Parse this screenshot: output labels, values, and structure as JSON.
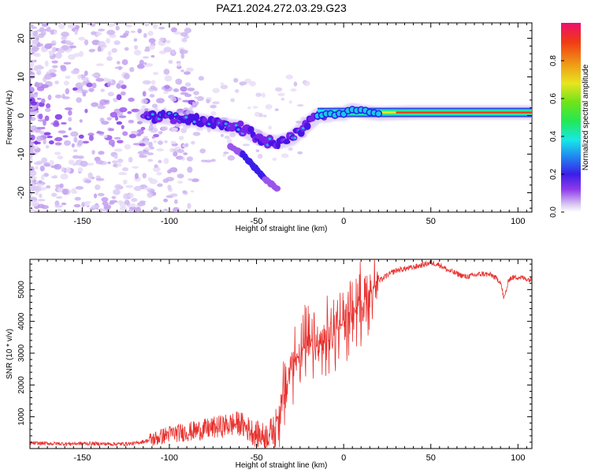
{
  "figure": {
    "title": "PAZ1.2024.272.03.29.G23"
  },
  "chart_data": [
    {
      "type": "heatmap",
      "title": "PAZ1.2024.272.03.29.G23",
      "xlabel": "Height of straight line (km)",
      "ylabel": "Frequency (Hz)",
      "xlim": [
        -180,
        108
      ],
      "ylim": [
        -25,
        24
      ],
      "xticks": [
        -150,
        -100,
        -50,
        0,
        50,
        100
      ],
      "yticks": [
        -20,
        -10,
        0,
        10,
        20
      ],
      "colorbar": {
        "label": "Normalized spectral amplitude",
        "range": [
          0,
          1
        ],
        "ticks": [
          "0.0",
          "0.2",
          "0.4",
          "0.6",
          "0.8"
        ]
      },
      "ridge": [
        {
          "x": -115,
          "y": 0
        },
        {
          "x": -100,
          "y": -0.5
        },
        {
          "x": -90,
          "y": -1
        },
        {
          "x": -80,
          "y": -1.5
        },
        {
          "x": -70,
          "y": -2.5
        },
        {
          "x": -60,
          "y": -3
        },
        {
          "x": -52,
          "y": -5
        },
        {
          "x": -45,
          "y": -6.5
        },
        {
          "x": -38,
          "y": -7
        },
        {
          "x": -30,
          "y": -6
        },
        {
          "x": -25,
          "y": -4
        },
        {
          "x": -20,
          "y": -2
        },
        {
          "x": -15,
          "y": 0
        },
        {
          "x": -10,
          "y": 0
        },
        {
          "x": -5,
          "y": 0.5
        },
        {
          "x": 0,
          "y": 0.5
        },
        {
          "x": 5,
          "y": 1.5
        },
        {
          "x": 10,
          "y": 1
        },
        {
          "x": 20,
          "y": 0.5
        },
        {
          "x": 40,
          "y": 0.8
        },
        {
          "x": 60,
          "y": 0.8
        },
        {
          "x": 80,
          "y": 0.8
        },
        {
          "x": 100,
          "y": 0.8
        },
        {
          "x": 108,
          "y": 0.8
        }
      ],
      "branch": [
        {
          "x": -65,
          "y": -8
        },
        {
          "x": -58,
          "y": -10
        },
        {
          "x": -52,
          "y": -13
        },
        {
          "x": -48,
          "y": -15
        },
        {
          "x": -45,
          "y": -16.5
        },
        {
          "x": -38,
          "y": -19
        }
      ]
    },
    {
      "type": "line",
      "xlabel": "Height of straight line (km)",
      "ylabel": "SNR (10 * v/v)",
      "xlim": [
        -180,
        108
      ],
      "ylim": [
        0,
        5950
      ],
      "xticks": [
        -150,
        -100,
        -50,
        0,
        50,
        100
      ],
      "yticks": [
        1000,
        2000,
        3000,
        4000,
        5000
      ],
      "color": "#e8312e",
      "x": [
        -180,
        -170,
        -160,
        -150,
        -140,
        -130,
        -120,
        -110,
        -100,
        -90,
        -80,
        -70,
        -60,
        -50,
        -45,
        -40,
        -35,
        -30,
        -25,
        -20,
        -15,
        -10,
        -5,
        0,
        5,
        10,
        15,
        20,
        25,
        30,
        40,
        50,
        55,
        60,
        70,
        80,
        85,
        90,
        92,
        95,
        100,
        108
      ],
      "values": [
        170,
        160,
        150,
        160,
        150,
        140,
        160,
        280,
        460,
        520,
        600,
        700,
        800,
        450,
        380,
        600,
        1500,
        2600,
        3000,
        3300,
        3100,
        3400,
        3700,
        4000,
        4300,
        4600,
        4900,
        5250,
        5450,
        5600,
        5700,
        5850,
        5780,
        5600,
        5400,
        5500,
        5450,
        5250,
        4700,
        5350,
        5400,
        5300
      ]
    }
  ]
}
